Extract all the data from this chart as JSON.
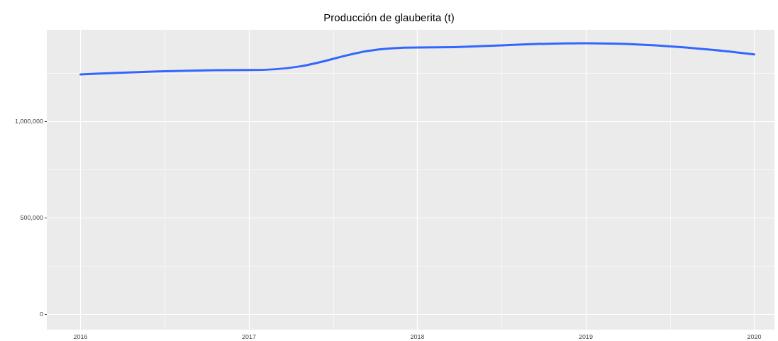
{
  "chart_data": {
    "type": "line",
    "title": "Producción de glauberita (t)",
    "x": [
      2016,
      2017,
      2018,
      2019,
      2020
    ],
    "series": [
      {
        "color": "#3366ff",
        "values": [
          1242000,
          1265000,
          1382000,
          1404000,
          1346000
        ]
      }
    ],
    "xlim": [
      2015.8,
      2020.12
    ],
    "xticks": [
      2016,
      2017,
      2018,
      2019,
      2020
    ],
    "ylim": [
      -81000,
      1474000
    ],
    "yticks": [
      0,
      {
        "value": 500000,
        "label": "500,000"
      },
      {
        "value": 1000000,
        "label": "1,000,000"
      }
    ],
    "grid": true,
    "marker": "none"
  }
}
